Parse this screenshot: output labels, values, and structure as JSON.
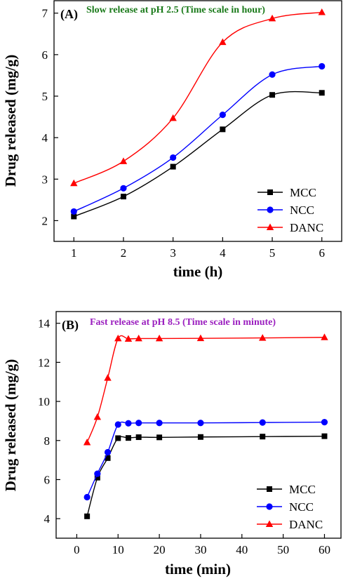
{
  "chart_data": [
    {
      "type": "line",
      "panel_label": "(A)",
      "annotation": "Slow release at pH 2.5 (Time scale in hour)",
      "annotation_color": "#1a7a1a",
      "xlabel": "time (h)",
      "ylabel": "Drug released (mg/g)",
      "xlim": [
        0.6,
        6.4
      ],
      "ylim": [
        1.5,
        7.3
      ],
      "xticks": [
        1,
        2,
        3,
        4,
        5,
        6
      ],
      "yticks": [
        2,
        3,
        4,
        5,
        6,
        7
      ],
      "legend_position": "bottom-right",
      "x": [
        1,
        2,
        3,
        4,
        5,
        6
      ],
      "series": [
        {
          "name": "MCC",
          "color": "#000000",
          "marker": "square",
          "values": [
            2.1,
            2.58,
            3.3,
            4.2,
            5.03,
            5.08
          ]
        },
        {
          "name": "NCC",
          "color": "#0000ff",
          "marker": "circle",
          "values": [
            2.22,
            2.78,
            3.52,
            4.55,
            5.52,
            5.72
          ]
        },
        {
          "name": "DANC",
          "color": "#ff0000",
          "marker": "triangle",
          "values": [
            2.9,
            3.43,
            4.47,
            6.3,
            6.87,
            7.02
          ]
        }
      ]
    },
    {
      "type": "line",
      "panel_label": "(B)",
      "annotation": "Fast release at pH 8.5 (Time scale in minute)",
      "annotation_color": "#9b1fbf",
      "xlabel": "time (min)",
      "ylabel": "Drug released (mg/g)",
      "xlim": [
        -5,
        64
      ],
      "ylim": [
        3,
        14.6
      ],
      "xticks": [
        0,
        10,
        20,
        30,
        40,
        50,
        60
      ],
      "yticks": [
        4,
        6,
        8,
        10,
        12,
        14
      ],
      "legend_position": "bottom-right",
      "x": [
        2.5,
        5,
        7.5,
        10,
        12.5,
        15,
        20,
        30,
        45,
        60
      ],
      "series": [
        {
          "name": "MCC",
          "color": "#000000",
          "marker": "square",
          "values": [
            4.12,
            6.1,
            7.1,
            8.12,
            8.13,
            8.17,
            8.16,
            8.18,
            8.2,
            8.22
          ]
        },
        {
          "name": "NCC",
          "color": "#0000ff",
          "marker": "circle",
          "values": [
            5.1,
            6.3,
            7.4,
            8.82,
            8.88,
            8.9,
            8.9,
            8.9,
            8.92,
            8.94
          ]
        },
        {
          "name": "DANC",
          "color": "#ff0000",
          "marker": "triangle",
          "values": [
            7.9,
            9.2,
            11.2,
            13.22,
            13.2,
            13.22,
            13.22,
            13.23,
            13.25,
            13.28
          ]
        }
      ]
    }
  ]
}
